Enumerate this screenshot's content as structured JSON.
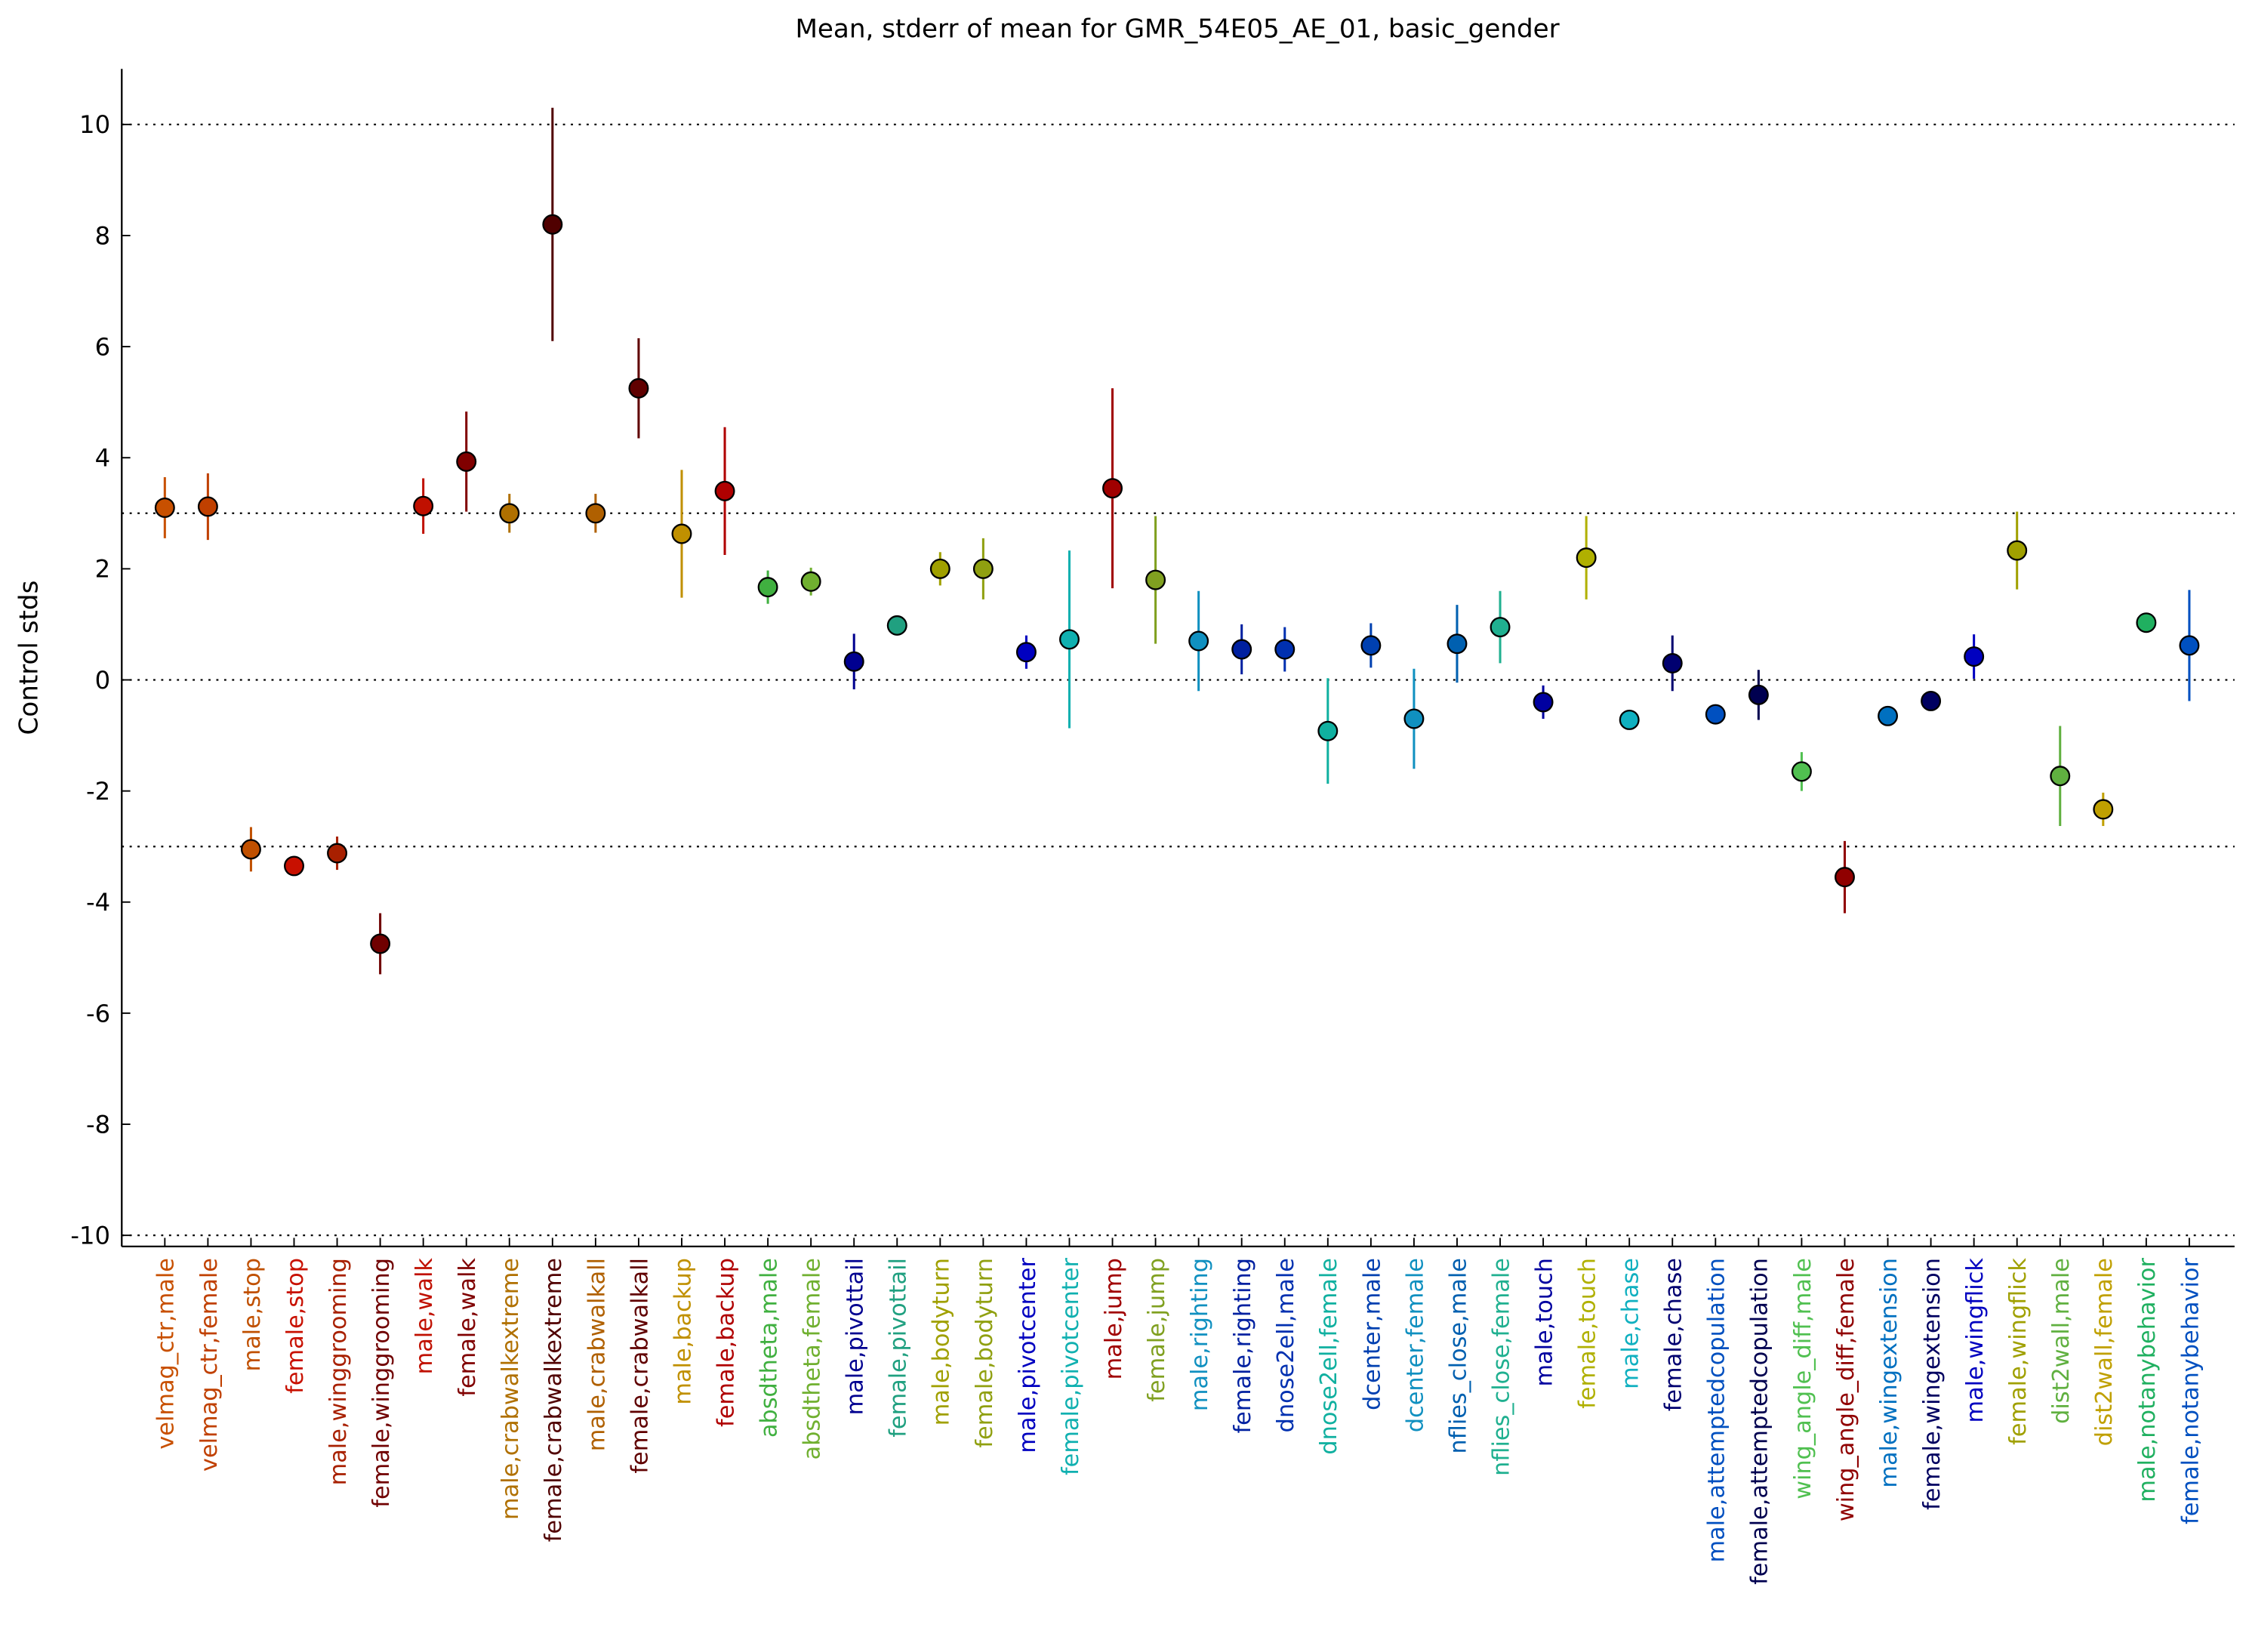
{
  "chart_data": {
    "type": "errorbar",
    "title": "Mean, stderr of mean for GMR_54E05_AE_01, basic_gender",
    "ylabel": "Control stds",
    "categories": [
      "velmag_ctr,male",
      "velmag_ctr,female",
      "male,stop",
      "female,stop",
      "male,winggrooming",
      "female,winggrooming",
      "male,walk",
      "female,walk",
      "male,crabwalkextreme",
      "female,crabwalkextreme",
      "male,crabwalkall",
      "female,crabwalkall",
      "male,backup",
      "female,backup",
      "absdtheta,male",
      "absdtheta,female",
      "male,pivottail",
      "female,pivottail",
      "male,bodyturn",
      "female,bodyturn",
      "male,pivotcenter",
      "female,pivotcenter",
      "male,jump",
      "female,jump",
      "male,righting",
      "female,righting",
      "dnose2ell,male",
      "dnose2ell,female",
      "dcenter,male",
      "dcenter,female",
      "nflies_close,male",
      "nflies_close,female",
      "male,touch",
      "female,touch",
      "male,chase",
      "female,chase",
      "male,attemptedcopulation",
      "female,attemptedcopulation",
      "wing_angle_diff,male",
      "wing_angle_diff,female",
      "male,wingextension",
      "female,wingextension",
      "male,wingflick",
      "female,wingflick",
      "dist2wall,male",
      "dist2wall,female",
      "male,notanybehavior",
      "female,notanybehavior"
    ],
    "series": [
      {
        "values": [
          3.1,
          3.12,
          -3.05,
          -3.35,
          -3.12,
          -4.75,
          3.13,
          3.93,
          3.0,
          8.2,
          3.0,
          5.25,
          2.63,
          3.4,
          1.67,
          1.77,
          0.33,
          0.98,
          2.0,
          2.0,
          0.5,
          0.73,
          3.45,
          1.8,
          0.7,
          0.55,
          0.55,
          -0.92,
          0.62,
          -0.7,
          0.65,
          0.95,
          -0.4,
          2.2,
          -0.72,
          0.3,
          -0.62,
          -0.27,
          -1.65,
          -3.55,
          -0.65,
          -0.38,
          0.42,
          2.33,
          -1.73,
          -2.33,
          1.03,
          0.62
        ],
        "errors": [
          0.55,
          0.6,
          0.4,
          0.1,
          0.3,
          0.55,
          0.5,
          0.9,
          0.35,
          2.1,
          0.35,
          0.9,
          1.15,
          1.15,
          0.3,
          0.25,
          0.5,
          0.05,
          0.3,
          0.55,
          0.3,
          1.6,
          1.8,
          1.15,
          0.9,
          0.45,
          0.4,
          0.95,
          0.4,
          0.9,
          0.7,
          0.65,
          0.3,
          0.75,
          0.05,
          0.5,
          0.05,
          0.45,
          0.35,
          0.65,
          0.05,
          0.05,
          0.4,
          0.7,
          0.9,
          0.3,
          0.15,
          1.0
        ],
        "colors": [
          "#c85000",
          "#c04000",
          "#c05000",
          "#c81000",
          "#a82000",
          "#700000",
          "#c01000",
          "#800000",
          "#b07000",
          "#500000",
          "#b06000",
          "#600000",
          "#c09000",
          "#b00000",
          "#40b040",
          "#70b030",
          "#000090",
          "#20a080",
          "#a0a000",
          "#90a010",
          "#0000c0",
          "#10b0b0",
          "#a00000",
          "#80a020",
          "#1090c0",
          "#0020a0",
          "#0030b0",
          "#10b0a0",
          "#0040b0",
          "#1090c0",
          "#0060b0",
          "#20b090",
          "#0000a0",
          "#b0b000",
          "#10b0c0",
          "#000070",
          "#0050c0",
          "#000050",
          "#50c050",
          "#900000",
          "#0070c0",
          "#000060",
          "#0000c0",
          "#a0a000",
          "#60b040",
          "#c0a000",
          "#20b060",
          "#0050c0"
        ]
      }
    ],
    "ylim": [
      -10.2,
      11
    ],
    "yticks": [
      -10,
      -8,
      -6,
      -4,
      -2,
      0,
      2,
      4,
      6,
      8,
      10
    ],
    "hlines": [
      -10,
      -3,
      0,
      3,
      10
    ]
  }
}
